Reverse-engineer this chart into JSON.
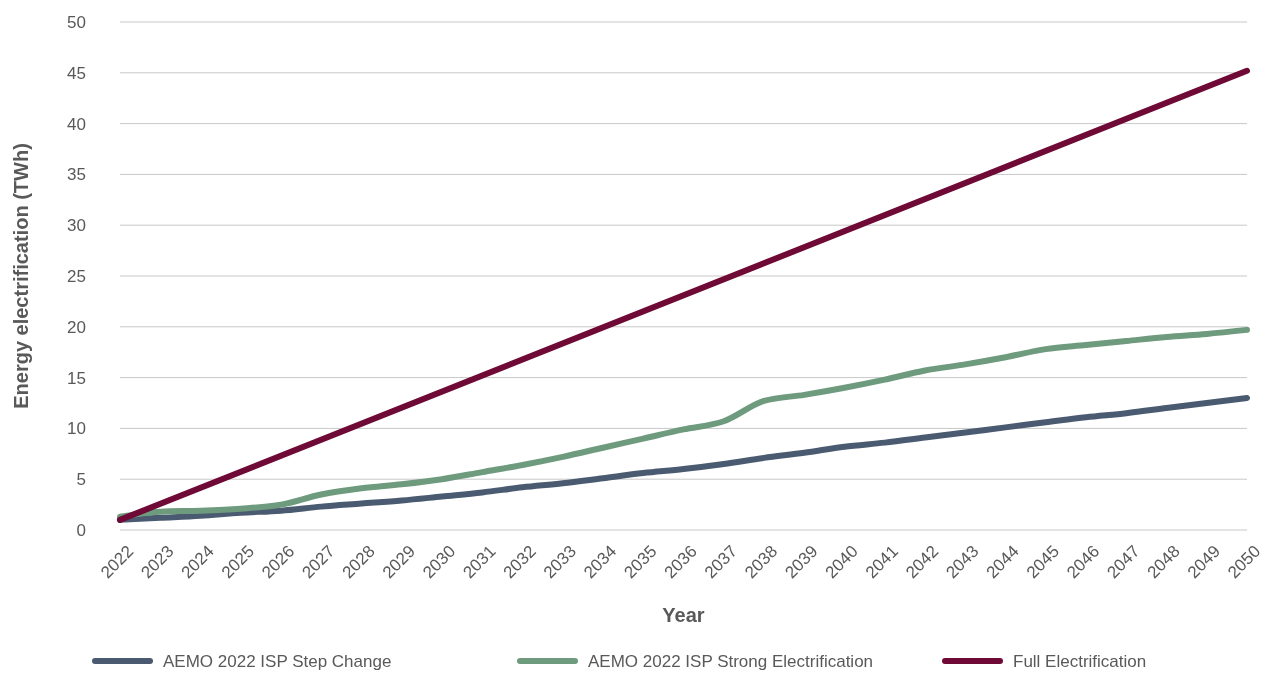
{
  "chart_data": {
    "type": "line",
    "xlabel": "Year",
    "ylabel": "Energy electrification (TWh)",
    "x": [
      2022,
      2023,
      2024,
      2025,
      2026,
      2027,
      2028,
      2029,
      2030,
      2031,
      2032,
      2033,
      2034,
      2035,
      2036,
      2037,
      2038,
      2039,
      2040,
      2041,
      2042,
      2043,
      2044,
      2045,
      2046,
      2047,
      2048,
      2049,
      2050
    ],
    "series": [
      {
        "name": "AEMO 2022 ISP Step Change",
        "color": "#4a5a70",
        "values": [
          1.0,
          1.2,
          1.4,
          1.7,
          1.9,
          2.3,
          2.6,
          2.9,
          3.3,
          3.7,
          4.2,
          4.6,
          5.1,
          5.6,
          6.0,
          6.5,
          7.1,
          7.6,
          8.2,
          8.6,
          9.1,
          9.6,
          10.1,
          10.6,
          11.1,
          11.5,
          12.0,
          12.5,
          13.0
        ]
      },
      {
        "name": "AEMO 2022 ISP Strong Electrification",
        "color": "#6e9a7e",
        "values": [
          1.3,
          1.8,
          1.9,
          2.1,
          2.5,
          3.5,
          4.1,
          4.5,
          5.0,
          5.7,
          6.4,
          7.2,
          8.1,
          9.0,
          9.9,
          10.7,
          12.7,
          13.3,
          14.0,
          14.8,
          15.7,
          16.3,
          17.0,
          17.8,
          18.2,
          18.6,
          19.0,
          19.3,
          19.7
        ]
      },
      {
        "name": "Full Electrification",
        "color": "#6e0a35",
        "x": [
          2022,
          2050
        ],
        "values": [
          1.0,
          45.2
        ]
      }
    ],
    "xlim": [
      2022,
      2050
    ],
    "xticks": [
      2022,
      2023,
      2024,
      2025,
      2026,
      2027,
      2028,
      2029,
      2030,
      2031,
      2032,
      2033,
      2034,
      2035,
      2036,
      2037,
      2038,
      2039,
      2040,
      2041,
      2042,
      2043,
      2044,
      2045,
      2046,
      2047,
      2048,
      2049,
      2050
    ],
    "ylim": [
      0,
      50
    ],
    "yticks": [
      0,
      5,
      10,
      15,
      20,
      25,
      30,
      35,
      40,
      45,
      50
    ],
    "grid": "y",
    "legend": "bottom",
    "marker": "none",
    "line_style": "solid"
  }
}
